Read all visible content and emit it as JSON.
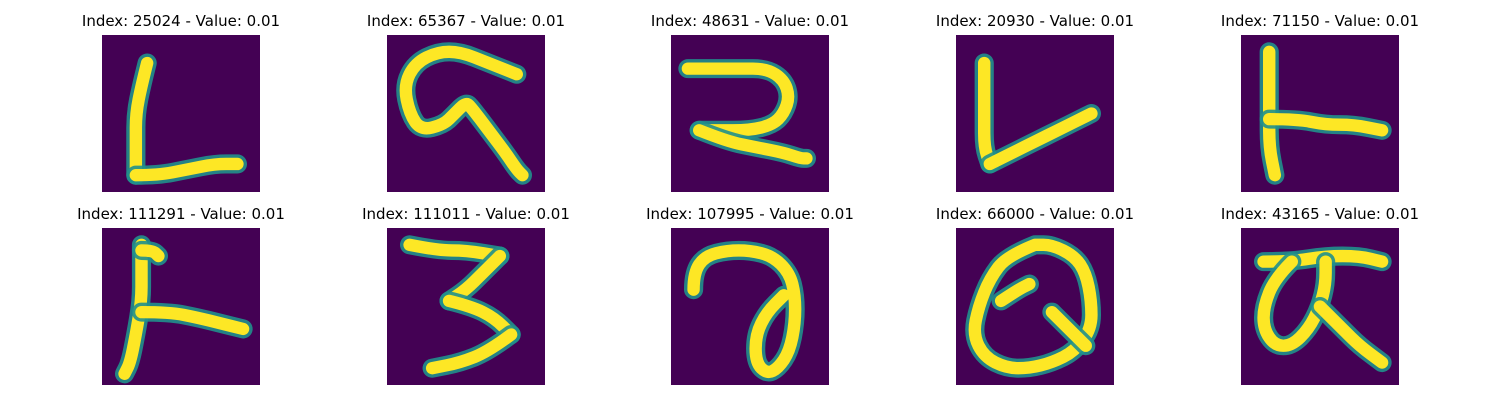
{
  "colormap": {
    "background": "#440154",
    "mid": "#21908c",
    "high": "#fde725"
  },
  "panels": [
    {
      "title": "Index: 25024 - Value: 0.01",
      "glyph": "L-shape",
      "strokes": [
        {
          "points": [
            [
              8,
              5
            ],
            [
              7,
              9
            ],
            [
              6,
              14
            ],
            [
              6,
              19
            ],
            [
              6,
              25
            ]
          ]
        },
        {
          "points": [
            [
              6,
              25
            ],
            [
              10,
              25
            ],
            [
              15,
              24
            ],
            [
              20,
              23
            ],
            [
              24,
              23
            ]
          ]
        }
      ]
    },
    {
      "title": "Index: 65367 - Value: 0.01",
      "glyph": "curl-6",
      "strokes": [
        {
          "points": [
            [
              23,
              7
            ],
            [
              18,
              5
            ],
            [
              13,
              3
            ],
            [
              9,
              3
            ],
            [
              5,
              5
            ],
            [
              3,
              9
            ],
            [
              4,
              14
            ],
            [
              6,
              17
            ],
            [
              10,
              16
            ],
            [
              12,
              14
            ],
            [
              14,
              12
            ],
            [
              15,
              13
            ],
            [
              18,
              17
            ],
            [
              21,
              21
            ],
            [
              23,
              24
            ],
            [
              24,
              25
            ]
          ]
        }
      ]
    },
    {
      "title": "Index: 48631 - Value: 0.01",
      "glyph": "2-shape",
      "strokes": [
        {
          "points": [
            [
              3,
              6
            ],
            [
              7,
              6
            ],
            [
              12,
              6
            ],
            [
              17,
              6
            ],
            [
              20,
              8
            ],
            [
              21,
              11
            ],
            [
              20,
              14
            ],
            [
              18,
              16
            ],
            [
              14,
              17
            ],
            [
              8,
              17
            ],
            [
              5,
              17
            ]
          ]
        },
        {
          "points": [
            [
              5,
              17
            ],
            [
              10,
              19
            ],
            [
              15,
              20
            ],
            [
              20,
              21
            ],
            [
              23,
              22
            ],
            [
              24,
              22
            ]
          ]
        }
      ]
    },
    {
      "title": "Index: 20930 - Value: 0.01",
      "glyph": "V-shape",
      "strokes": [
        {
          "points": [
            [
              5,
              5
            ],
            [
              5,
              10
            ],
            [
              5,
              15
            ],
            [
              5,
              20
            ],
            [
              6,
              23
            ]
          ]
        },
        {
          "points": [
            [
              6,
              23
            ],
            [
              10,
              21
            ],
            [
              14,
              19
            ],
            [
              18,
              17
            ],
            [
              22,
              15
            ],
            [
              24,
              14
            ]
          ]
        }
      ]
    },
    {
      "title": "Index: 71150 - Value: 0.01",
      "glyph": "T-sideways",
      "strokes": [
        {
          "points": [
            [
              5,
              3
            ],
            [
              5,
              8
            ],
            [
              5,
              14
            ],
            [
              5,
              20
            ],
            [
              6,
              25
            ]
          ]
        },
        {
          "points": [
            [
              5,
              15
            ],
            [
              10,
              15
            ],
            [
              15,
              16
            ],
            [
              20,
              16
            ],
            [
              25,
              17
            ]
          ]
        }
      ]
    },
    {
      "title": "Index: 111291 - Value: 0.01",
      "glyph": "T-sideways",
      "strokes": [
        {
          "points": [
            [
              7,
              3
            ],
            [
              7,
              8
            ],
            [
              7,
              13
            ],
            [
              6,
              19
            ],
            [
              5,
              24
            ],
            [
              4,
              26
            ]
          ]
        },
        {
          "points": [
            [
              7,
              15
            ],
            [
              12,
              15
            ],
            [
              17,
              16
            ],
            [
              21,
              17
            ],
            [
              25,
              18
            ]
          ]
        },
        {
          "points": [
            [
              7,
              4
            ],
            [
              9,
              4
            ],
            [
              10,
              5
            ]
          ]
        }
      ]
    },
    {
      "title": "Index: 111011 - Value: 0.01",
      "glyph": "3-shape",
      "strokes": [
        {
          "points": [
            [
              4,
              3
            ],
            [
              9,
              4
            ],
            [
              14,
              4
            ],
            [
              20,
              5
            ]
          ]
        },
        {
          "points": [
            [
              20,
              5
            ],
            [
              17,
              8
            ],
            [
              14,
              11
            ],
            [
              11,
              13
            ]
          ]
        },
        {
          "points": [
            [
              11,
              13
            ],
            [
              15,
              14
            ],
            [
              19,
              16
            ],
            [
              22,
              19
            ]
          ]
        },
        {
          "points": [
            [
              22,
              19
            ],
            [
              18,
              22
            ],
            [
              13,
              24
            ],
            [
              8,
              25
            ]
          ]
        }
      ]
    },
    {
      "title": "Index: 107995 - Value: 0.01",
      "glyph": "a-loop",
      "strokes": [
        {
          "points": [
            [
              4,
              11
            ],
            [
              4,
              8
            ],
            [
              6,
              5
            ],
            [
              10,
              4
            ],
            [
              14,
              4
            ],
            [
              18,
              5
            ],
            [
              21,
              8
            ],
            [
              22,
              12
            ],
            [
              22,
              17
            ],
            [
              21,
              22
            ],
            [
              19,
              25
            ],
            [
              17,
              26
            ],
            [
              15,
              24
            ],
            [
              15,
              19
            ],
            [
              17,
              15
            ],
            [
              20,
              12
            ]
          ]
        }
      ]
    },
    {
      "title": "Index: 66000 - Value: 0.01",
      "glyph": "Q-loop",
      "strokes": [
        {
          "points": [
            [
              14,
              3
            ],
            [
              9,
              5
            ],
            [
              6,
              9
            ],
            [
              4,
              14
            ],
            [
              3,
              19
            ],
            [
              5,
              23
            ],
            [
              9,
              25
            ],
            [
              13,
              25
            ],
            [
              17,
              24
            ],
            [
              21,
              22
            ],
            [
              24,
              18
            ],
            [
              24,
              13
            ],
            [
              23,
              8
            ],
            [
              21,
              5
            ],
            [
              17,
              3
            ],
            [
              14,
              3
            ]
          ]
        },
        {
          "points": [
            [
              8,
              13
            ],
            [
              11,
              11
            ],
            [
              13,
              10
            ]
          ]
        },
        {
          "points": [
            [
              17,
              15
            ],
            [
              20,
              18
            ],
            [
              23,
              21
            ]
          ]
        }
      ]
    },
    {
      "title": "Index: 43165 - Value: 0.01",
      "glyph": "alpha-T",
      "strokes": [
        {
          "points": [
            [
              4,
              6
            ],
            [
              9,
              6
            ],
            [
              15,
              5
            ],
            [
              21,
              5
            ],
            [
              25,
              6
            ]
          ]
        },
        {
          "points": [
            [
              9,
              6
            ],
            [
              6,
              9
            ],
            [
              4,
              14
            ],
            [
              4,
              18
            ],
            [
              6,
              21
            ],
            [
              9,
              21
            ],
            [
              12,
              18
            ],
            [
              14,
              14
            ],
            [
              15,
              10
            ],
            [
              15,
              6
            ]
          ]
        },
        {
          "points": [
            [
              14,
              14
            ],
            [
              18,
              18
            ],
            [
              21,
              21
            ],
            [
              25,
              24
            ]
          ]
        }
      ]
    }
  ]
}
